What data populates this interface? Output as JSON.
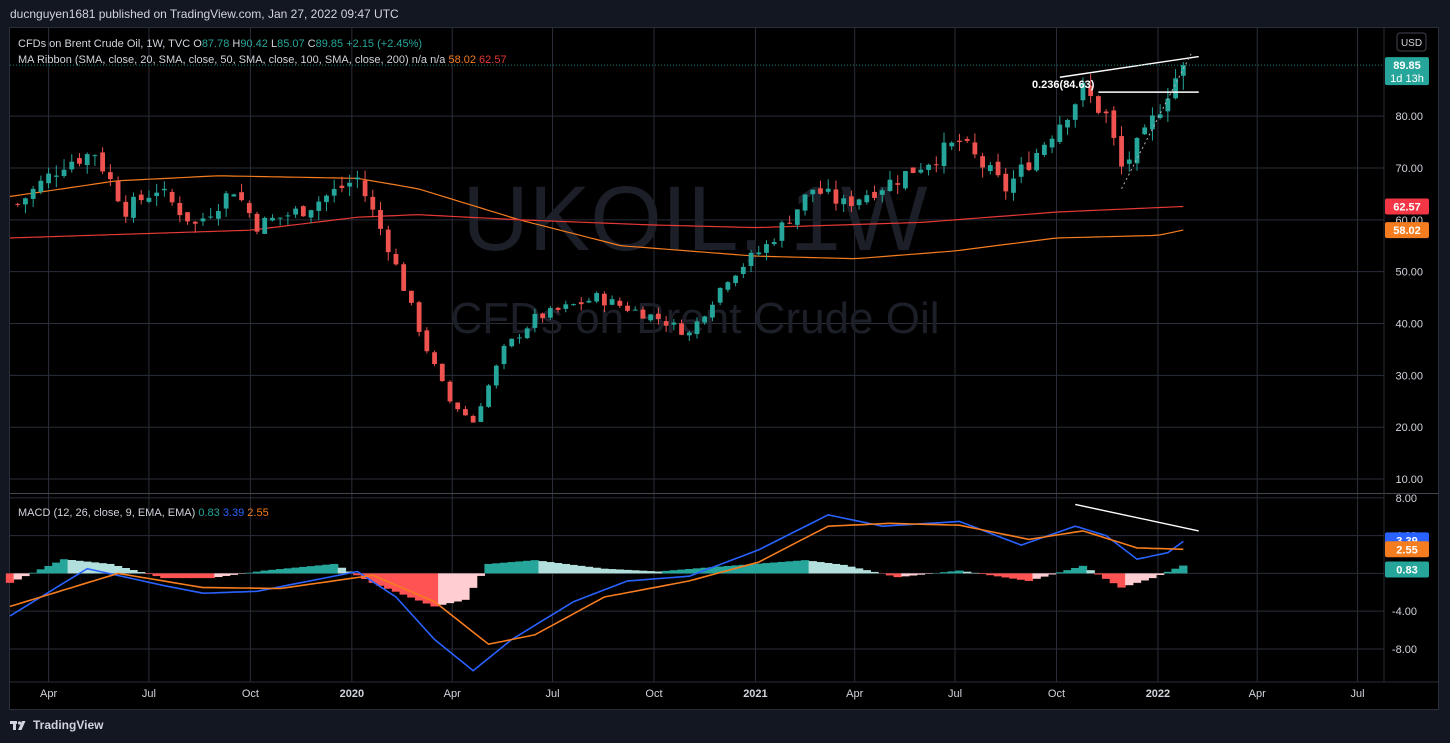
{
  "header": {
    "publisher_line": "ducnguyen1681 published on TradingView.com, Jan 27, 2022 09:47 UTC"
  },
  "footer": {
    "brand": "TradingView"
  },
  "currency_button": "USD",
  "watermark": {
    "symbol": "UKOIL, 1W",
    "description": "CFDs on Brent Crude Oil"
  },
  "legend": {
    "symbol_title": "CFDs on Brent Crude Oil, 1W, TVC",
    "ohlc": [
      {
        "k": "O",
        "v": "87.78"
      },
      {
        "k": "H",
        "v": "90.42"
      },
      {
        "k": "L",
        "v": "85.07"
      },
      {
        "k": "C",
        "v": "89.85"
      }
    ],
    "change": "+2.15 (+2.45%)",
    "ma_title": "MA Ribbon (SMA, close, 20, SMA, close, 50, SMA, close, 100, SMA, close, 200)",
    "ma_values": [
      {
        "v": "n/a",
        "color": "#d1d4dc"
      },
      {
        "v": "n/a",
        "color": "#d1d4dc"
      },
      {
        "v": "58.02",
        "color": "#f57c1f"
      },
      {
        "v": "62.57",
        "color": "#e53935"
      }
    ],
    "macd_title": "MACD (12, 26, close, 9, EMA, EMA)",
    "macd_values": [
      {
        "v": "0.83",
        "color": "#26a69a"
      },
      {
        "v": "3.39",
        "color": "#2962ff"
      },
      {
        "v": "2.55",
        "color": "#f57c1f"
      }
    ]
  },
  "price_labels": [
    {
      "text": "89.85",
      "sub": "1d 13h",
      "value": 89.85,
      "bg": "#26a69a"
    },
    {
      "text": "62.57",
      "value": 62.57,
      "bg": "#f23645"
    },
    {
      "text": "58.02",
      "value": 58.02,
      "bg": "#f57c1f"
    }
  ],
  "macd_labels": [
    {
      "text": "3.39",
      "value": 3.39,
      "bg": "#2962ff"
    },
    {
      "text": "2.55",
      "value": 2.55,
      "bg": "#f57c1f"
    },
    {
      "text": "0.83",
      "value": 0.83,
      "bg": "#26a69a"
    }
  ],
  "fib_label": "0.236(84.63)",
  "colors": {
    "up": "#26a69a",
    "down": "#ef5350",
    "ma100": "#f57c1f",
    "ma200": "#e53935",
    "macd": "#2962ff",
    "signal": "#f57c1f",
    "hist_up": "#26a69a",
    "hist_up_light": "#b2dfdb",
    "hist_dn": "#ff5252",
    "hist_dn_light": "#ffcdd2",
    "grid": "#2a2e39",
    "text": "#d1d4dc"
  },
  "chart_data": {
    "type": "candlestick",
    "interval": "1W",
    "symbol": "UKOIL",
    "x_axis": {
      "range": [
        "2019-02-25",
        "2022-07-25"
      ],
      "ticks": [
        {
          "label": "Apr",
          "date": "2019-04-01"
        },
        {
          "label": "Jul",
          "date": "2019-07-01"
        },
        {
          "label": "Oct",
          "date": "2019-10-01"
        },
        {
          "label": "2020",
          "date": "2020-01-01"
        },
        {
          "label": "Apr",
          "date": "2020-04-01"
        },
        {
          "label": "Jul",
          "date": "2020-07-01"
        },
        {
          "label": "Oct",
          "date": "2020-10-01"
        },
        {
          "label": "2021",
          "date": "2021-01-01"
        },
        {
          "label": "Apr",
          "date": "2021-04-01"
        },
        {
          "label": "Jul",
          "date": "2021-07-01"
        },
        {
          "label": "Oct",
          "date": "2021-10-01"
        },
        {
          "label": "2022",
          "date": "2022-01-01"
        },
        {
          "label": "Apr",
          "date": "2022-04-01"
        },
        {
          "label": "Jul",
          "date": "2022-07-01"
        }
      ]
    },
    "price_axis": {
      "range": [
        7.5,
        97
      ],
      "ticks": [
        {
          "label": "10.00",
          "value": 10
        },
        {
          "label": "20.00",
          "value": 20
        },
        {
          "label": "30.00",
          "value": 30
        },
        {
          "label": "40.00",
          "value": 40
        },
        {
          "label": "50.00",
          "value": 50
        },
        {
          "label": "60.00",
          "value": 60
        },
        {
          "label": "70.00",
          "value": 70
        },
        {
          "label": "80.00",
          "value": 80
        }
      ]
    },
    "macd_axis": {
      "range": [
        -11.5,
        8.3
      ],
      "ticks": [
        {
          "label": "8.00",
          "value": 8
        },
        {
          "label": "4.00",
          "value": 4
        },
        {
          "label": "0.00",
          "value": 0
        },
        {
          "label": "-4.00",
          "value": -4
        },
        {
          "label": "-8.00",
          "value": -8
        }
      ]
    },
    "close_keypoints": [
      [
        "2019-03-04",
        63
      ],
      [
        "2019-04-15",
        71
      ],
      [
        "2019-05-13",
        73
      ],
      [
        "2019-06-10",
        62
      ],
      [
        "2019-07-08",
        66
      ],
      [
        "2019-08-12",
        59
      ],
      [
        "2019-09-16",
        66
      ],
      [
        "2019-10-07",
        59
      ],
      [
        "2019-11-18",
        62
      ],
      [
        "2020-01-06",
        68
      ],
      [
        "2020-02-03",
        55
      ],
      [
        "2020-03-09",
        35
      ],
      [
        "2020-03-30",
        25
      ],
      [
        "2020-04-20",
        21
      ],
      [
        "2020-05-18",
        35
      ],
      [
        "2020-06-15",
        41
      ],
      [
        "2020-08-10",
        45
      ],
      [
        "2020-10-05",
        41
      ],
      [
        "2020-11-02",
        38
      ],
      [
        "2020-12-07",
        49
      ],
      [
        "2021-01-11",
        55
      ],
      [
        "2021-02-22",
        66
      ],
      [
        "2021-03-22",
        63
      ],
      [
        "2021-05-10",
        68
      ],
      [
        "2021-07-05",
        75
      ],
      [
        "2021-08-16",
        66
      ],
      [
        "2021-09-13",
        73
      ],
      [
        "2021-10-25",
        85
      ],
      [
        "2021-11-15",
        80
      ],
      [
        "2021-11-29",
        70
      ],
      [
        "2021-12-20",
        76
      ],
      [
        "2022-01-10",
        85
      ],
      [
        "2022-01-24",
        89.85
      ]
    ],
    "ma_ribbon": [
      {
        "name": "SMA 100",
        "color": "#f57c1f",
        "points": [
          [
            "2019-02-25",
            64.5
          ],
          [
            "2019-06-01",
            67.5
          ],
          [
            "2019-09-01",
            68.5
          ],
          [
            "2020-01-06",
            68
          ],
          [
            "2020-03-01",
            66
          ],
          [
            "2020-06-01",
            60
          ],
          [
            "2020-09-01",
            55
          ],
          [
            "2021-01-01",
            53
          ],
          [
            "2021-04-01",
            52.5
          ],
          [
            "2021-07-01",
            54
          ],
          [
            "2021-10-01",
            56.5
          ],
          [
            "2022-01-01",
            57
          ],
          [
            "2022-01-24",
            58.02
          ]
        ]
      },
      {
        "name": "SMA 200",
        "color": "#e53935",
        "points": [
          [
            "2019-02-25",
            56.5
          ],
          [
            "2019-10-01",
            58
          ],
          [
            "2020-01-06",
            60.5
          ],
          [
            "2020-03-01",
            61
          ],
          [
            "2020-06-01",
            60
          ],
          [
            "2020-10-01",
            59
          ],
          [
            "2021-01-01",
            58.5
          ],
          [
            "2021-06-01",
            59.5
          ],
          [
            "2021-10-01",
            61.5
          ],
          [
            "2022-01-24",
            62.57
          ]
        ]
      }
    ],
    "macd": {
      "macd_line": [
        [
          "2019-02-25",
          -4.5
        ],
        [
          "2019-05-06",
          0.5
        ],
        [
          "2019-07-15",
          -1.3
        ],
        [
          "2019-08-19",
          -2.1
        ],
        [
          "2019-10-07",
          -1.9
        ],
        [
          "2020-01-06",
          0.2
        ],
        [
          "2020-02-10",
          -2.5
        ],
        [
          "2020-03-16",
          -7
        ],
        [
          "2020-04-20",
          -10.3
        ],
        [
          "2020-05-25",
          -7
        ],
        [
          "2020-07-20",
          -3
        ],
        [
          "2020-09-07",
          -0.8
        ],
        [
          "2020-11-02",
          -0.3
        ],
        [
          "2021-01-04",
          2.5
        ],
        [
          "2021-03-08",
          6.2
        ],
        [
          "2021-04-26",
          5
        ],
        [
          "2021-07-05",
          5.5
        ],
        [
          "2021-08-30",
          3
        ],
        [
          "2021-10-18",
          5
        ],
        [
          "2021-11-15",
          4
        ],
        [
          "2021-12-13",
          1.5
        ],
        [
          "2022-01-10",
          2.2
        ],
        [
          "2022-01-24",
          3.39
        ]
      ],
      "signal": [
        [
          "2019-02-25",
          -3.5
        ],
        [
          "2019-06-03",
          0
        ],
        [
          "2019-08-19",
          -1.5
        ],
        [
          "2019-10-28",
          -1.6
        ],
        [
          "2020-01-20",
          -0.2
        ],
        [
          "2020-03-16",
          -3
        ],
        [
          "2020-05-04",
          -7.5
        ],
        [
          "2020-06-15",
          -6.5
        ],
        [
          "2020-08-17",
          -2.5
        ],
        [
          "2020-11-02",
          -0.8
        ],
        [
          "2021-01-04",
          1.2
        ],
        [
          "2021-03-08",
          5
        ],
        [
          "2021-05-03",
          5.3
        ],
        [
          "2021-07-05",
          5.1
        ],
        [
          "2021-09-06",
          3.6
        ],
        [
          "2021-10-25",
          4.5
        ],
        [
          "2021-12-13",
          2.7
        ],
        [
          "2022-01-24",
          2.55
        ]
      ],
      "histogram": [
        [
          "2019-02-25",
          -1
        ],
        [
          "2019-04-15",
          1.5
        ],
        [
          "2019-05-27",
          1
        ],
        [
          "2019-07-15",
          -0.5
        ],
        [
          "2019-08-26",
          -0.5
        ],
        [
          "2019-10-14",
          0.3
        ],
        [
          "2019-12-16",
          1
        ],
        [
          "2020-01-20",
          -1
        ],
        [
          "2020-03-16",
          -3.5
        ],
        [
          "2020-04-13",
          -2.8
        ],
        [
          "2020-05-04",
          1
        ],
        [
          "2020-06-15",
          1.4
        ],
        [
          "2020-08-17",
          0.5
        ],
        [
          "2020-10-05",
          0.2
        ],
        [
          "2020-11-16",
          0.6
        ],
        [
          "2021-02-15",
          1.4
        ],
        [
          "2021-03-22",
          0.9
        ],
        [
          "2021-05-10",
          -0.4
        ],
        [
          "2021-07-05",
          0.3
        ],
        [
          "2021-09-06",
          -0.8
        ],
        [
          "2021-10-25",
          0.8
        ],
        [
          "2021-11-29",
          -1.5
        ],
        [
          "2021-12-27",
          -0.5
        ],
        [
          "2022-01-24",
          0.83
        ]
      ]
    },
    "drawings": [
      {
        "type": "trendline",
        "from": [
          "2021-10-04",
          87.5
        ],
        "to": [
          "2022-02-07",
          91.5
        ]
      },
      {
        "type": "horizontal",
        "from": [
          "2021-11-08",
          84.63
        ],
        "to": [
          "2022-02-07",
          84.63
        ],
        "label": "0.236(84.63)"
      },
      {
        "type": "dotted",
        "from": [
          "2021-11-29",
          66
        ],
        "to": [
          "2022-01-31",
          92
        ]
      },
      {
        "type": "macd_trendline",
        "from": [
          "2021-10-18",
          7.3
        ],
        "to": [
          "2022-02-07",
          4.5
        ]
      }
    ]
  }
}
